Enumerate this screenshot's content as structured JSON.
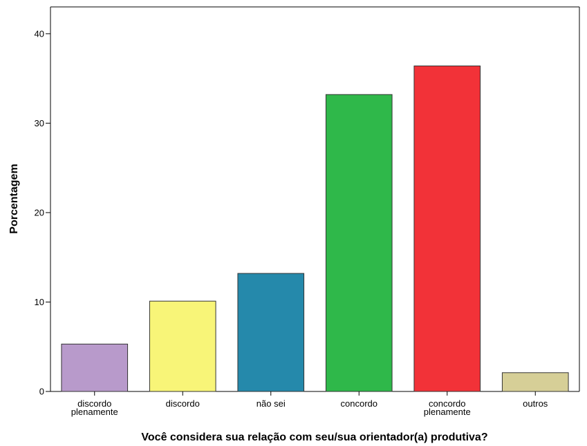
{
  "chart_data": {
    "type": "bar",
    "title": "",
    "xlabel": "Você considera sua relação com seu/sua orientador(a) produtiva?",
    "ylabel": "Porcentagem",
    "ylim": [
      0,
      43
    ],
    "yticks": [
      "0",
      "10",
      "20",
      "30",
      "40"
    ],
    "grid": false,
    "legend": "none",
    "categories": [
      [
        "discordo",
        "plenamente"
      ],
      [
        "discordo"
      ],
      [
        "não sei"
      ],
      [
        "concordo"
      ],
      [
        "concordo",
        "plenamente"
      ],
      [
        "outros"
      ]
    ],
    "values": [
      5.3,
      10.1,
      13.2,
      33.2,
      36.4,
      2.1
    ],
    "colors": [
      "#b89acb",
      "#f8f578",
      "#2589ab",
      "#2fb84a",
      "#f23238",
      "#d6cf97"
    ]
  }
}
